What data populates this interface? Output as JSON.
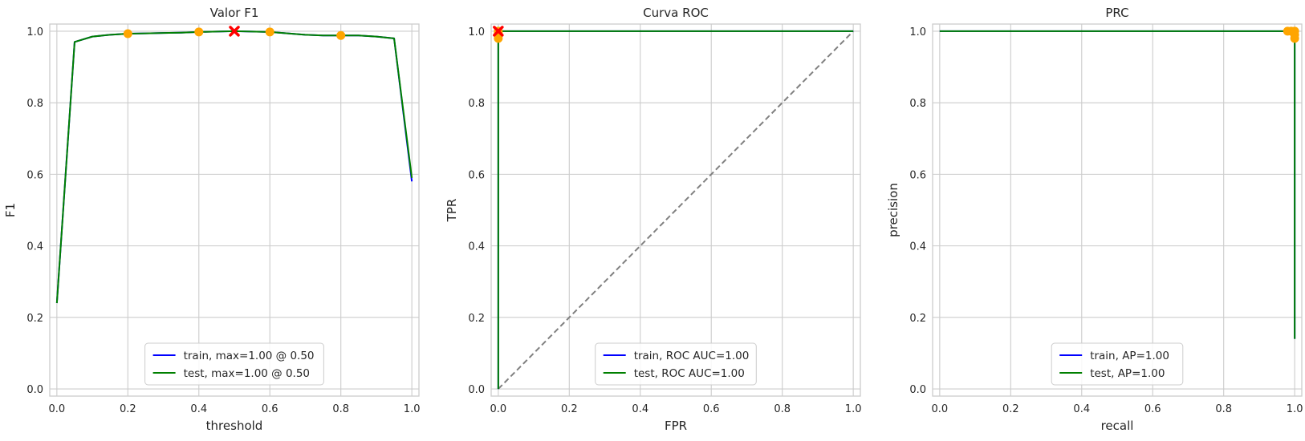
{
  "colors": {
    "train": "#0000ff",
    "test": "#008000",
    "marker": "#ffa500",
    "best": "#ff0000",
    "diagonal": "#808080",
    "grid": "#cccccc"
  },
  "chart_data": [
    {
      "type": "line",
      "title": "Valor F1",
      "xlabel": "threshold",
      "ylabel": "F1",
      "xlim": [
        -0.02,
        1.02
      ],
      "ylim": [
        -0.02,
        1.02
      ],
      "xticks": [
        "0.0",
        "0.2",
        "0.4",
        "0.6",
        "0.8",
        "1.0"
      ],
      "yticks": [
        "0.0",
        "0.2",
        "0.4",
        "0.6",
        "0.8",
        "1.0"
      ],
      "grid": true,
      "legend_position": "lower center",
      "series": [
        {
          "name": "train, max=1.00 @ 0.50",
          "color_key": "train",
          "x": [
            0.0,
            0.05,
            0.1,
            0.15,
            0.2,
            0.25,
            0.3,
            0.35,
            0.4,
            0.45,
            0.5,
            0.55,
            0.6,
            0.65,
            0.7,
            0.75,
            0.8,
            0.85,
            0.9,
            0.95,
            1.0
          ],
          "y": [
            0.24,
            0.97,
            0.985,
            0.99,
            0.993,
            0.994,
            0.995,
            0.996,
            0.998,
            0.999,
            1.0,
            0.999,
            0.998,
            0.994,
            0.99,
            0.988,
            0.988,
            0.988,
            0.985,
            0.98,
            0.58
          ]
        },
        {
          "name": "test, max=1.00 @ 0.50",
          "color_key": "test",
          "x": [
            0.0,
            0.05,
            0.1,
            0.15,
            0.2,
            0.25,
            0.3,
            0.35,
            0.4,
            0.45,
            0.5,
            0.55,
            0.6,
            0.65,
            0.7,
            0.75,
            0.8,
            0.85,
            0.9,
            0.95,
            1.0
          ],
          "y": [
            0.24,
            0.97,
            0.985,
            0.99,
            0.993,
            0.994,
            0.995,
            0.996,
            0.998,
            0.999,
            1.0,
            0.999,
            0.998,
            0.994,
            0.99,
            0.988,
            0.988,
            0.988,
            0.985,
            0.98,
            0.59
          ]
        }
      ],
      "markers": [
        {
          "x": 0.2,
          "y": 0.993
        },
        {
          "x": 0.4,
          "y": 0.998
        },
        {
          "x": 0.6,
          "y": 0.998
        },
        {
          "x": 0.8,
          "y": 0.988
        }
      ],
      "best_marker": {
        "x": 0.5,
        "y": 1.0
      }
    },
    {
      "type": "line",
      "title": "Curva ROC",
      "xlabel": "FPR",
      "ylabel": "TPR",
      "xlim": [
        -0.02,
        1.02
      ],
      "ylim": [
        -0.02,
        1.02
      ],
      "xticks": [
        "0.0",
        "0.2",
        "0.4",
        "0.6",
        "0.8",
        "1.0"
      ],
      "yticks": [
        "0.0",
        "0.2",
        "0.4",
        "0.6",
        "0.8",
        "1.0"
      ],
      "grid": true,
      "legend_position": "lower center",
      "series": [
        {
          "name": "train, ROC AUC=1.00",
          "color_key": "train",
          "x": [
            0.0,
            0.0,
            1.0
          ],
          "y": [
            0.0,
            1.0,
            1.0
          ]
        },
        {
          "name": "test, ROC AUC=1.00",
          "color_key": "test",
          "x": [
            0.0,
            0.0,
            1.0
          ],
          "y": [
            0.0,
            1.0,
            1.0
          ]
        }
      ],
      "diagonal": {
        "x": [
          0.0,
          1.0
        ],
        "y": [
          0.0,
          1.0
        ]
      },
      "markers": [
        {
          "x": 0.0,
          "y": 0.98
        },
        {
          "x": 0.0,
          "y": 0.99
        },
        {
          "x": 0.0,
          "y": 0.995
        },
        {
          "x": 0.0,
          "y": 1.0
        }
      ],
      "best_marker": {
        "x": 0.0,
        "y": 1.0
      }
    },
    {
      "type": "line",
      "title": "PRC",
      "xlabel": "recall",
      "ylabel": "precision",
      "xlim": [
        -0.02,
        1.02
      ],
      "ylim": [
        -0.02,
        1.02
      ],
      "xticks": [
        "0.0",
        "0.2",
        "0.4",
        "0.6",
        "0.8",
        "1.0"
      ],
      "yticks": [
        "0.0",
        "0.2",
        "0.4",
        "0.6",
        "0.8",
        "1.0"
      ],
      "grid": true,
      "legend_position": "lower center",
      "series": [
        {
          "name": "train, AP=1.00",
          "color_key": "train",
          "x": [
            0.0,
            1.0,
            1.0
          ],
          "y": [
            1.0,
            1.0,
            0.14
          ]
        },
        {
          "name": "test, AP=1.00",
          "color_key": "test",
          "x": [
            0.0,
            1.0,
            1.0
          ],
          "y": [
            1.0,
            1.0,
            0.14
          ]
        }
      ],
      "markers": [
        {
          "x": 0.98,
          "y": 1.0
        },
        {
          "x": 0.99,
          "y": 1.0
        },
        {
          "x": 1.0,
          "y": 0.99
        },
        {
          "x": 1.0,
          "y": 0.98
        },
        {
          "x": 1.0,
          "y": 1.0
        }
      ]
    }
  ]
}
